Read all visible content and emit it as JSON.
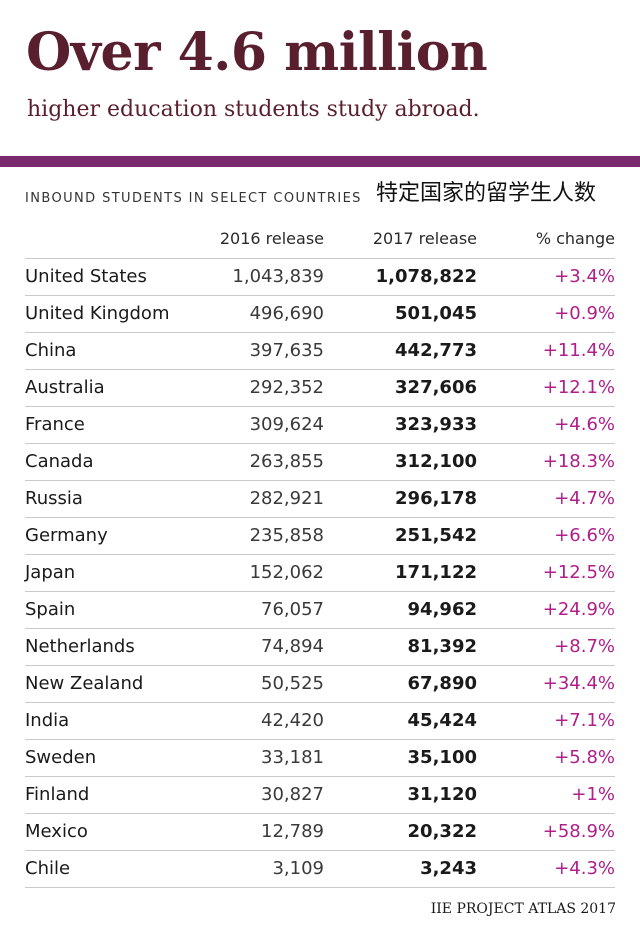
{
  "header": {
    "title": "Over 4.6 million",
    "subtitle": "higher education students study abroad."
  },
  "section": {
    "label": "INBOUND STUDENTS IN SELECT COUNTRIES",
    "label_zh": "特定国家的留学生人数"
  },
  "table": {
    "columns": [
      "2016 release",
      "2017 release",
      "% change"
    ]
  },
  "chart_data": {
    "type": "table",
    "title": "INBOUND STUDENTS IN SELECT COUNTRIES",
    "columns": [
      "2016 release",
      "2017 release",
      "% change"
    ],
    "rows": [
      {
        "country": "United States",
        "v2016": "1,043,839",
        "v2017": "1,078,822",
        "change": "+3.4%"
      },
      {
        "country": "United Kingdom",
        "v2016": "496,690",
        "v2017": "501,045",
        "change": "+0.9%"
      },
      {
        "country": "China",
        "v2016": "397,635",
        "v2017": "442,773",
        "change": "+11.4%"
      },
      {
        "country": "Australia",
        "v2016": "292,352",
        "v2017": "327,606",
        "change": "+12.1%"
      },
      {
        "country": "France",
        "v2016": "309,624",
        "v2017": "323,933",
        "change": "+4.6%"
      },
      {
        "country": "Canada",
        "v2016": "263,855",
        "v2017": "312,100",
        "change": "+18.3%"
      },
      {
        "country": "Russia",
        "v2016": "282,921",
        "v2017": "296,178",
        "change": "+4.7%"
      },
      {
        "country": "Germany",
        "v2016": "235,858",
        "v2017": "251,542",
        "change": "+6.6%"
      },
      {
        "country": "Japan",
        "v2016": "152,062",
        "v2017": "171,122",
        "change": "+12.5%"
      },
      {
        "country": "Spain",
        "v2016": "76,057",
        "v2017": "94,962",
        "change": "+24.9%"
      },
      {
        "country": "Netherlands",
        "v2016": "74,894",
        "v2017": "81,392",
        "change": "+8.7%"
      },
      {
        "country": "New Zealand",
        "v2016": "50,525",
        "v2017": "67,890",
        "change": "+34.4%"
      },
      {
        "country": "India",
        "v2016": "42,420",
        "v2017": "45,424",
        "change": "+7.1%"
      },
      {
        "country": "Sweden",
        "v2016": "33,181",
        "v2017": "35,100",
        "change": "+5.8%"
      },
      {
        "country": "Finland",
        "v2016": "30,827",
        "v2017": "31,120",
        "change": "+1%"
      },
      {
        "country": "Mexico",
        "v2016": "12,789",
        "v2017": "20,322",
        "change": "+58.9%"
      },
      {
        "country": "Chile",
        "v2016": "3,109",
        "v2017": "3,243",
        "change": "+4.3%"
      }
    ]
  },
  "footer": {
    "source": "IIE PROJECT ATLAS 2017"
  },
  "colors": {
    "title": "#5a1f2e",
    "band": "#7a2a6e",
    "change": "#b01e8a"
  }
}
